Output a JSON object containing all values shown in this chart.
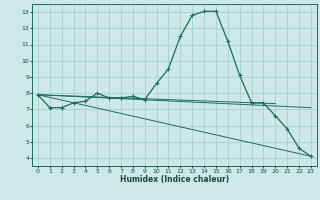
{
  "xlabel": "Humidex (Indice chaleur)",
  "bg_color": "#cce8e8",
  "grid_color": "#aad0d0",
  "line_color": "#1e6b5e",
  "xlim": [
    -0.5,
    23.5
  ],
  "ylim": [
    3.5,
    13.5
  ],
  "xticks": [
    0,
    1,
    2,
    3,
    4,
    5,
    6,
    7,
    8,
    9,
    10,
    11,
    12,
    13,
    14,
    15,
    16,
    17,
    18,
    19,
    20,
    21,
    22,
    23
  ],
  "yticks": [
    4,
    5,
    6,
    7,
    8,
    9,
    10,
    11,
    12,
    13
  ],
  "curve1_x": [
    0,
    1,
    2,
    3,
    4,
    5,
    6,
    7,
    8,
    9,
    10,
    11,
    12,
    13,
    14,
    15,
    16,
    17,
    18,
    19,
    20,
    21,
    22,
    23
  ],
  "curve1_y": [
    7.9,
    7.1,
    7.1,
    7.4,
    7.5,
    8.0,
    7.7,
    7.7,
    7.8,
    7.6,
    8.6,
    9.5,
    11.5,
    12.8,
    13.05,
    13.05,
    11.2,
    9.1,
    7.4,
    7.4,
    6.6,
    5.8,
    4.6,
    4.1
  ],
  "line1_x": [
    0,
    23
  ],
  "line1_y": [
    7.9,
    7.1
  ],
  "line2_x": [
    0,
    23
  ],
  "line2_y": [
    7.9,
    4.1
  ],
  "line3_x": [
    0,
    20
  ],
  "line3_y": [
    7.9,
    7.35
  ]
}
